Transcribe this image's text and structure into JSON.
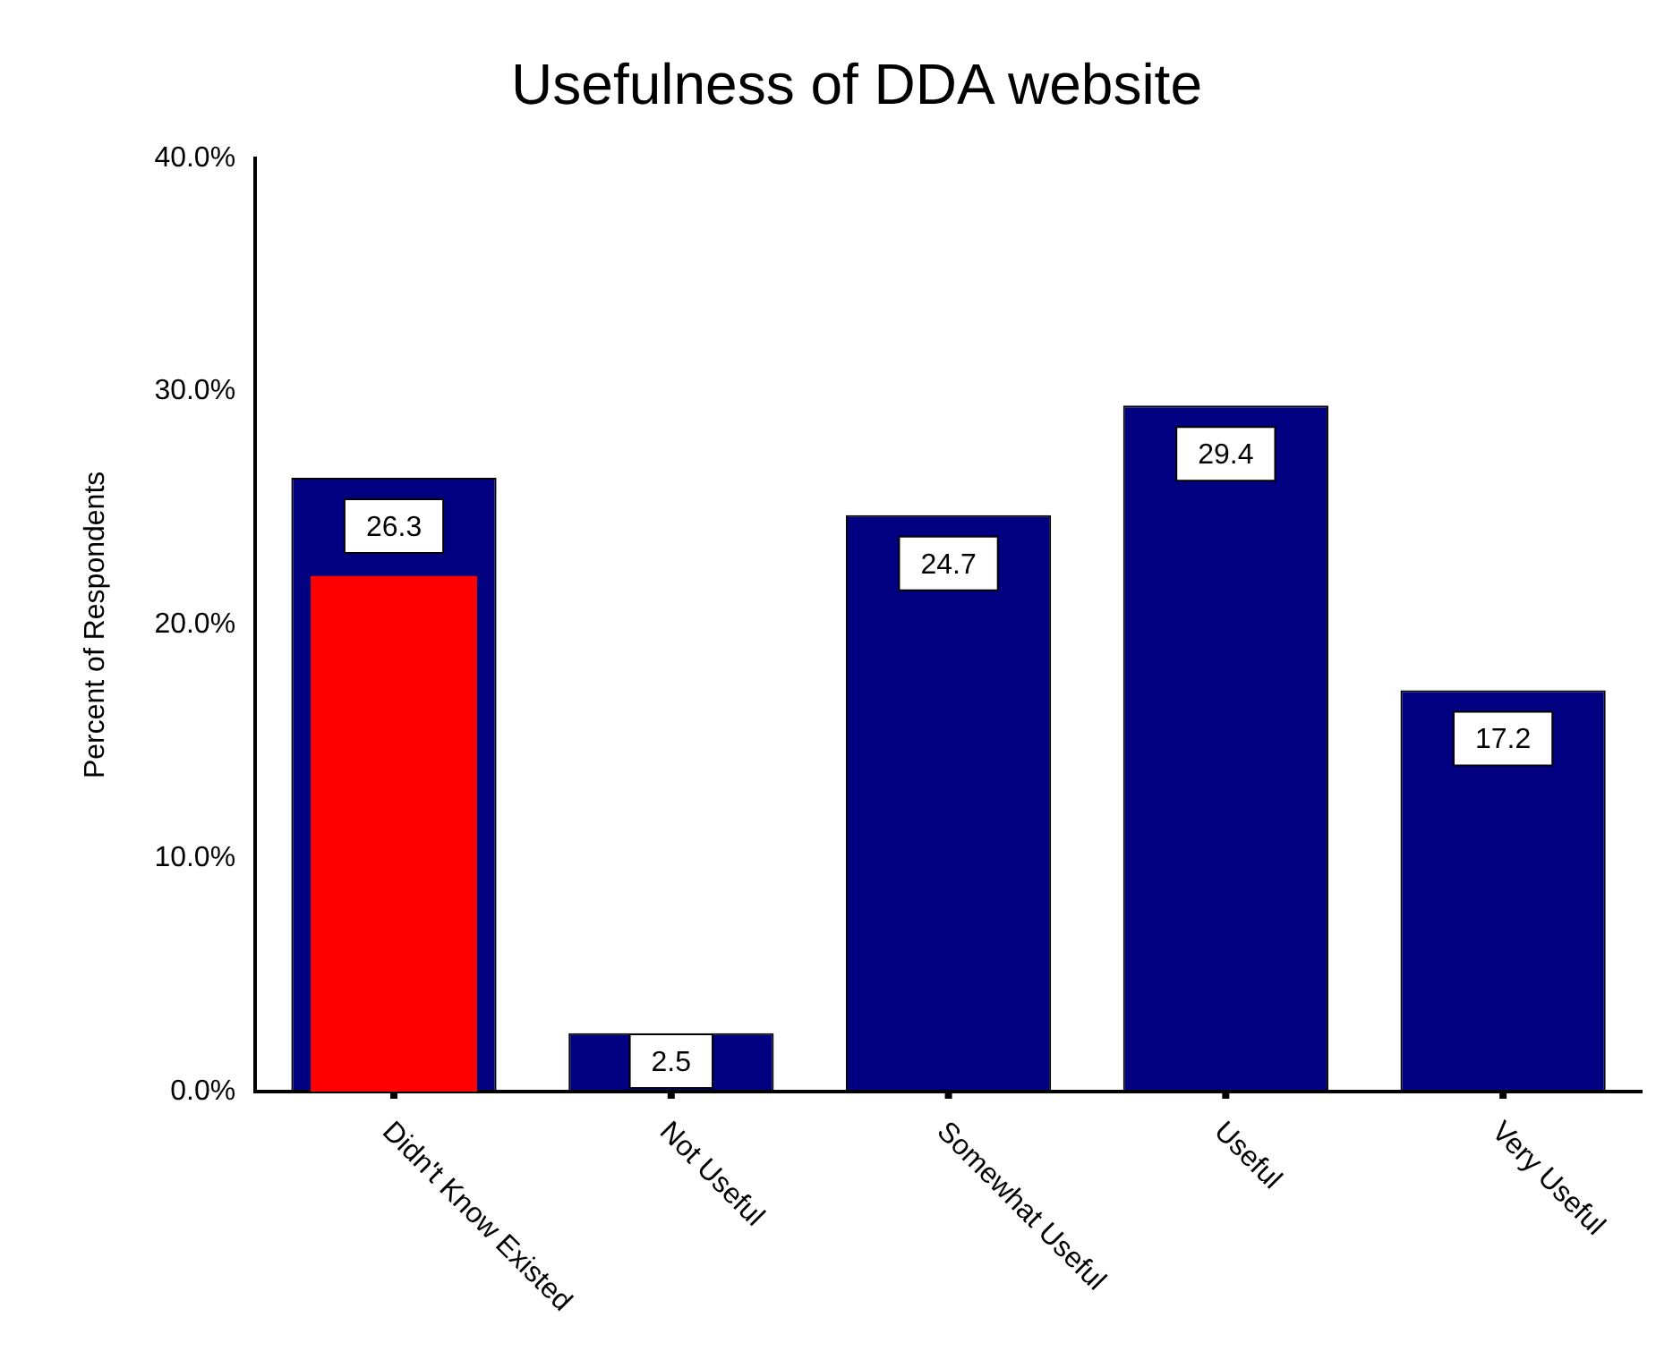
{
  "chart_data": {
    "type": "bar",
    "title": "Usefulness of DDA website",
    "ylabel": "Percent of Respondents",
    "categories": [
      "Didn't Know Existed",
      "Not Useful",
      "Somewhat Useful",
      "Useful",
      "Very Useful"
    ],
    "series": [
      {
        "color": "#000080",
        "values": [
          26.3,
          2.5,
          24.7,
          29.4,
          17.2
        ],
        "value_labels": [
          "26.3",
          "2.5",
          "24.7",
          "29.4",
          "17.2"
        ]
      },
      {
        "color": "#ff0000",
        "values": [
          22.1,
          null,
          null,
          null,
          null
        ]
      }
    ],
    "ylim": [
      0,
      40
    ],
    "yticks": [
      {
        "value": 0,
        "label": "0.0%"
      },
      {
        "value": 10,
        "label": "10.0%"
      },
      {
        "value": 20,
        "label": "20.0%"
      },
      {
        "value": 30,
        "label": "30.0%"
      },
      {
        "value": 40,
        "label": "40.0%"
      }
    ],
    "grid": false,
    "legend": false
  }
}
